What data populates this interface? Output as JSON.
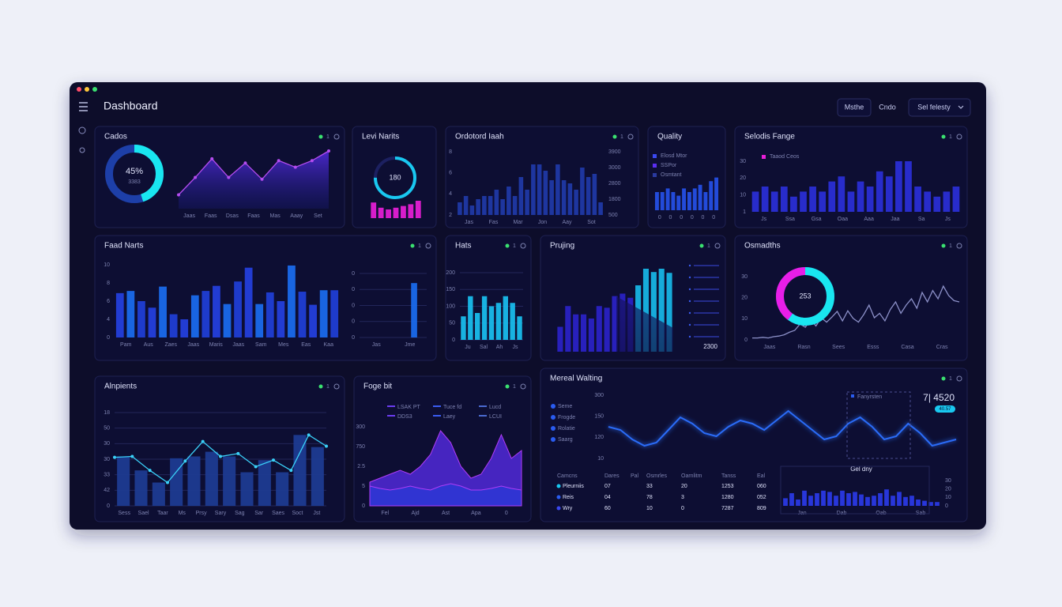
{
  "header": {
    "title": "Dashboard",
    "buttons": [
      "Msthe",
      "Cndo",
      "Sel felesty"
    ]
  },
  "panels": [
    {
      "title": "Cados",
      "badge": "1",
      "charts": [
        {
          "type": "donut",
          "values": [
            45
          ],
          "value_labels": [
            "45%"
          ],
          "colors": [
            "#19e6f0"
          ],
          "sub": "3383"
        },
        {
          "type": "line",
          "color": "#b44cf0",
          "fill": true,
          "dots": true,
          "ylim": [
            0,
            10
          ],
          "values": [
            2.3,
            5.2,
            8.3,
            5.2,
            7.6,
            4.9,
            8,
            6.9,
            8,
            9.6
          ],
          "xlabels": [
            "Jaas",
            "Faas",
            "Dsas",
            "Faas",
            "Mas",
            "Aaay",
            "Set"
          ]
        }
      ]
    },
    {
      "title": "Levi Narits",
      "charts": [
        {
          "type": "gauge",
          "values": [
            180
          ],
          "ylim": [
            0,
            240
          ],
          "color": "#19c8f0"
        },
        {
          "type": "bar",
          "color": "#e81ed8",
          "ylim": [
            0,
            10
          ],
          "values": [
            9,
            6,
            5,
            6,
            7,
            8,
            10
          ]
        }
      ]
    },
    {
      "title": "Ordotord Iaah",
      "badge": "1",
      "charts": [
        {
          "type": "bar",
          "color": "#1f3aa8",
          "ylim": [
            0,
            10
          ],
          "values": [
            2,
            3,
            1.5,
            2.5,
            3,
            3,
            4,
            2.5,
            4.5,
            3,
            6,
            4,
            8,
            8,
            7,
            5.5,
            8,
            5.5,
            5,
            4,
            7.5,
            6,
            6.5,
            2
          ],
          "ylabels": [
            "8",
            "6",
            "4",
            "2"
          ],
          "y2labels": [
            "3900",
            "3000",
            "2800",
            "1800",
            "500"
          ],
          "xlabels": [
            "Jas",
            "Fas",
            "Mar",
            "Jon",
            "Aay",
            "Sot"
          ]
        }
      ]
    },
    {
      "title": "Quality",
      "legend": [
        {
          "name": "Elosd Mtor",
          "color": "#3a48f0"
        },
        {
          "name": "SSPor",
          "color": "#5a2ef0"
        },
        {
          "name": "Osmtant",
          "color": "#2a3aa0"
        }
      ],
      "charts": [
        {
          "type": "bar",
          "color": "#2550e8",
          "ylim": [
            0,
            10
          ],
          "values": [
            5,
            5,
            6,
            5,
            4,
            6,
            5,
            6,
            7,
            5,
            8,
            9
          ],
          "xlabels": [
            "0",
            "0",
            "0",
            "0",
            "0",
            "0"
          ]
        }
      ]
    },
    {
      "title": "Selodis Fange",
      "badge": "1",
      "legend": [
        {
          "name": "Taaod Ceos",
          "color": "#e81ed8"
        }
      ],
      "charts": [
        {
          "type": "bar",
          "color": "#2a2fd8",
          "ylim": [
            0,
            10
          ],
          "values": [
            4,
            5,
            4,
            5,
            3,
            4,
            5,
            4,
            6,
            7,
            4,
            6,
            5,
            8,
            7,
            10,
            10,
            5,
            4,
            3,
            4,
            5
          ],
          "ylabels": [
            "30",
            "20",
            "10",
            "1"
          ],
          "xlabels": [
            "Js",
            "Ssa",
            "Gsa",
            "Oaa",
            "Aaa",
            "Jaa",
            "Sa",
            "Js"
          ]
        }
      ]
    },
    {
      "title": "Faad Narts",
      "badge": "1",
      "charts": [
        {
          "type": "bar",
          "colors": [
            "#2440e0",
            "#1a6cf0",
            "#1f3fd8"
          ],
          "ylim": [
            0,
            10
          ],
          "values": [
            6.1,
            6.4,
            5,
            4.1,
            7,
            3.2,
            2.5,
            5.8,
            6.4,
            7.1,
            4.6,
            7.7,
            9.6,
            4.6,
            6.2,
            5,
            9.9,
            6.3,
            4.5,
            6.5,
            6.5
          ],
          "ylabels": [
            "10",
            "8",
            "6",
            "4",
            "0"
          ],
          "xlabels": [
            "Pam",
            "Aus",
            "Zaes",
            "Jaas",
            "Maris",
            "Jaas",
            "Sam",
            "Mes",
            "Eas",
            "Kaa"
          ]
        },
        {
          "type": "bar",
          "color": "#1a6cf0",
          "grid": true,
          "ylim": [
            0,
            10
          ],
          "values": [
            null,
            null,
            null,
            null,
            null,
            null,
            8.5,
            null
          ],
          "ylabels": [
            "0",
            "0",
            "0",
            "0",
            "0"
          ],
          "xlabels": [
            "Jas",
            "Jme"
          ]
        }
      ]
    },
    {
      "title": "Hats",
      "badge": "1",
      "charts": [
        {
          "type": "bar",
          "color": "#19c0f0",
          "grid": true,
          "ylim": [
            0,
            10
          ],
          "values": [
            3.5,
            6.5,
            4,
            6.5,
            5,
            5.5,
            6.5,
            5.5,
            3.5
          ],
          "ylabels": [
            "200",
            "150",
            "100",
            "50",
            "0"
          ],
          "xlabels": [
            "Ju",
            "Sal",
            "Ah",
            "Js"
          ]
        }
      ]
    },
    {
      "title": "Prujing",
      "badge": "1",
      "note": "2300",
      "charts": [
        {
          "type": "bar",
          "colors": [
            "#2a22c8",
            "#2a22c8",
            "#2a22c8",
            "#2a22c8",
            "#2a22c8",
            "#2a22c8",
            "#2a22c8",
            "#2a22c8",
            "#2a22c8",
            "#2a22c8",
            "#17b8e8",
            "#17b8e8",
            "#17b8e8",
            "#17b8e8",
            "#17b8e8"
          ],
          "ylim": [
            0,
            10
          ],
          "values": [
            3,
            5.5,
            4.5,
            4.5,
            4,
            5.5,
            5.3,
            6.7,
            7,
            6.5,
            8,
            10,
            9.6,
            10,
            9.5
          ]
        }
      ]
    },
    {
      "title": "Osmadths",
      "badge": "1",
      "charts": [
        {
          "type": "line",
          "color": "#8c90c8",
          "ylim": [
            0,
            10
          ],
          "values": [
            0.3,
            0.3,
            0.4,
            0.3,
            0.5,
            0.6,
            0.8,
            1.2,
            1.5,
            2.5,
            2,
            3.2,
            2.2,
            3.5,
            2.8,
            3.6,
            4.5,
            3,
            4.6,
            3.4,
            2.8,
            4,
            5.5,
            3.5,
            4.2,
            3,
            4.8,
            6,
            4.2,
            5.5,
            6.5,
            5,
            7.5,
            6,
            7.8,
            6.5,
            8.5,
            7,
            6.2,
            6
          ],
          "ylabels": [
            "30",
            "20",
            "10",
            "0"
          ],
          "xlabels": [
            "Jaas",
            "Rasn",
            "Sees",
            "Esss",
            "Casa",
            "Cras"
          ]
        },
        {
          "type": "donut",
          "values": [
            60,
            40
          ],
          "colors": [
            "#19e6f0",
            "#e81ee8"
          ],
          "center": "253"
        }
      ]
    },
    {
      "title": "Alnpients",
      "badge": "1",
      "charts": [
        {
          "type": "bar",
          "color": "#1d3c94",
          "grid": true,
          "ylim": [
            0,
            10
          ],
          "values": [
            5.3,
            3.8,
            2.5,
            5.1,
            5.3,
            5.8,
            5.3,
            3.6,
            4.9,
            3.6,
            7.6,
            6.3
          ],
          "ylabels": [
            "18",
            "50",
            "30",
            "30",
            "33",
            "42",
            "0"
          ],
          "xlabels": [
            "Sess",
            "Sael",
            "Taar",
            "Ms",
            "Prsy",
            "Sary",
            "Sag",
            "Sar",
            "Saes",
            "Soct",
            "Jst"
          ]
        },
        {
          "type": "line",
          "color": "#3ad0f8",
          "dots": true,
          "ylim": [
            0,
            10
          ],
          "values": [
            5.2,
            5.3,
            3.8,
            2.5,
            4.8,
            6.9,
            5.3,
            5.6,
            4.2,
            4.9,
            3.8,
            7.6,
            6.4
          ]
        }
      ]
    },
    {
      "title": "Foge bit",
      "badge": "1",
      "legend": [
        {
          "name": "LSAK PT",
          "color": "#6a3cf0"
        },
        {
          "name": "Tuce fd",
          "color": "#3a5cf0"
        },
        {
          "name": "Lucd",
          "color": "#4a6ad0"
        },
        {
          "name": "DDS3",
          "color": "#6a3cf0"
        },
        {
          "name": "Laey",
          "color": "#3a5cf0"
        },
        {
          "name": "LCUI",
          "color": "#4a6ad0"
        }
      ],
      "charts": [
        {
          "type": "area",
          "ylim": [
            0,
            10
          ],
          "series": [
            {
              "color": "#5a2ef0",
              "values": [
                3,
                3.5,
                4,
                4.5,
                4,
                5,
                6.5,
                9.5,
                8,
                5,
                3.5,
                4,
                6,
                9,
                6,
                7
              ]
            },
            {
              "color": "#2a3ad8",
              "values": [
                2.5,
                2.2,
                2,
                2.2,
                2.5,
                2.2,
                2,
                2.5,
                2.8,
                2.5,
                2,
                2,
                2.2,
                2.5,
                2.2,
                2
              ]
            }
          ],
          "ylabels": [
            "300",
            "750",
            "2.5",
            "5",
            "0"
          ],
          "xlabels": [
            "Fel",
            "Ajd",
            "Ast",
            "Apa",
            "0"
          ]
        }
      ]
    },
    {
      "title": "Mereal Walting",
      "badge": "1",
      "legend": [
        {
          "name": "Seme",
          "color": "#2a5cf0"
        },
        {
          "name": "Frogde",
          "color": "#2a5cf0"
        },
        {
          "name": "Rolatie",
          "color": "#2a5cf0"
        },
        {
          "name": "Saarg",
          "color": "#2a5cf0"
        }
      ],
      "callout": {
        "label": "Fanyrsten",
        "value": "7| 4520",
        "badge": "40.57"
      },
      "table": {
        "headers": [
          "Camcns",
          "Dares",
          "Pal",
          "Osmrles",
          "Oarnlitm",
          "Tanss",
          "Eal"
        ],
        "rows": [
          [
            "Pleurniis",
            "07",
            "33",
            "20",
            "1253",
            "060"
          ],
          [
            "Reis",
            "04",
            "78",
            "3",
            "1280",
            "052"
          ],
          [
            "Wry",
            "60",
            "10",
            "0",
            "7287",
            "809"
          ]
        ]
      },
      "charts": [
        {
          "type": "line",
          "color": "#2c6cf8",
          "glow": true,
          "ylim": [
            0,
            10
          ],
          "values": [
            5,
            4.5,
            3,
            2,
            2.5,
            4.5,
            6.5,
            5.5,
            4,
            3.5,
            5,
            6,
            5.5,
            4.5,
            6,
            7.5,
            6,
            4.5,
            3,
            3.5,
            5.5,
            6.5,
            5,
            3,
            3.5,
            5.5,
            4,
            2,
            2.5,
            3
          ],
          "ylabels": [
            "300",
            "150",
            "120",
            "10"
          ]
        },
        {
          "type": "bar",
          "title": "Gel dny",
          "color": "#2a3ae8",
          "ylim": [
            0,
            10
          ],
          "values": [
            3,
            5,
            2.5,
            6,
            4,
            5,
            6,
            5.5,
            4,
            6,
            5,
            5.5,
            4.5,
            3.5,
            4,
            5,
            6.5,
            4,
            5.5,
            3.5,
            4,
            2.5,
            2,
            1.5,
            1.5
          ],
          "y2labels": [
            "30",
            "20",
            "10",
            "0"
          ],
          "xlabels": [
            "Jan",
            "Dab",
            "Oab",
            "Sab"
          ]
        }
      ]
    }
  ]
}
